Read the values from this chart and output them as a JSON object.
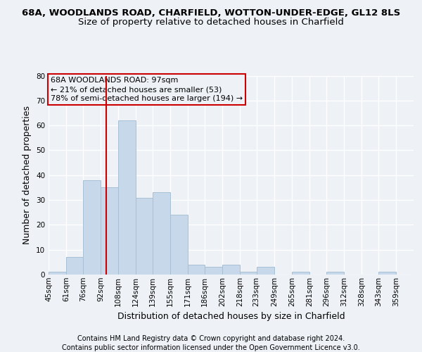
{
  "title": "68A, WOODLANDS ROAD, CHARFIELD, WOTTON-UNDER-EDGE, GL12 8LS",
  "subtitle": "Size of property relative to detached houses in Charfield",
  "xlabel": "Distribution of detached houses by size in Charfield",
  "ylabel": "Number of detached properties",
  "bar_color": "#c8d8eb",
  "bar_edge_color": "#a8c0d4",
  "vline_color": "#cc0000",
  "vline_x": 97,
  "categories": [
    "45sqm",
    "61sqm",
    "76sqm",
    "92sqm",
    "108sqm",
    "124sqm",
    "139sqm",
    "155sqm",
    "171sqm",
    "186sqm",
    "202sqm",
    "218sqm",
    "233sqm",
    "249sqm",
    "265sqm",
    "281sqm",
    "296sqm",
    "312sqm",
    "328sqm",
    "343sqm",
    "359sqm"
  ],
  "bin_edges": [
    45,
    61,
    76,
    92,
    108,
    124,
    139,
    155,
    171,
    186,
    202,
    218,
    233,
    249,
    265,
    281,
    296,
    312,
    328,
    343,
    359,
    375
  ],
  "values": [
    1,
    7,
    38,
    35,
    62,
    31,
    33,
    24,
    4,
    3,
    4,
    1,
    3,
    0,
    1,
    0,
    1,
    0,
    0,
    1,
    0
  ],
  "ylim": [
    0,
    80
  ],
  "yticks": [
    0,
    10,
    20,
    30,
    40,
    50,
    60,
    70,
    80
  ],
  "annotation_box_text": "68A WOODLANDS ROAD: 97sqm\n← 21% of detached houses are smaller (53)\n78% of semi-detached houses are larger (194) →",
  "footer_line1": "Contains HM Land Registry data © Crown copyright and database right 2024.",
  "footer_line2": "Contains public sector information licensed under the Open Government Licence v3.0.",
  "background_color": "#eef2f7",
  "grid_color": "#ffffff",
  "title_fontsize": 9.5,
  "subtitle_fontsize": 9.5,
  "xlabel_fontsize": 9,
  "ylabel_fontsize": 9,
  "tick_fontsize": 7.5,
  "footer_fontsize": 7,
  "annotation_fontsize": 8
}
